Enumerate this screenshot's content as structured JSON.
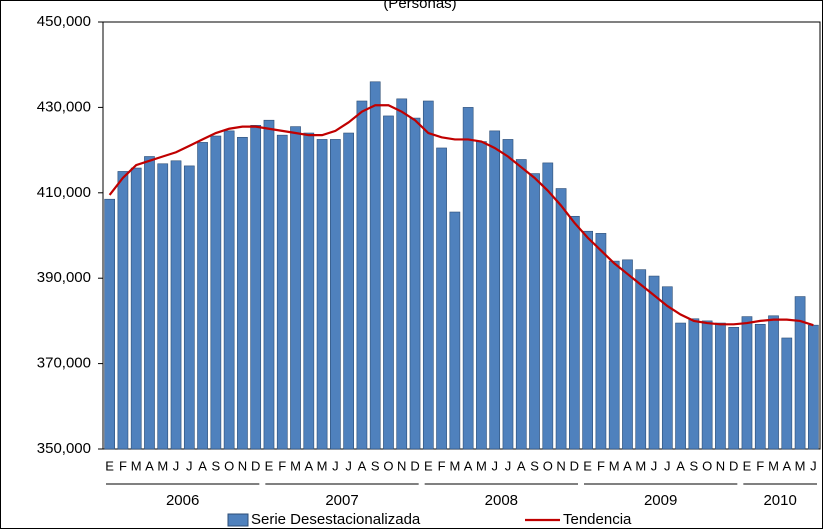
{
  "chart_data": {
    "type": "bar",
    "title": "(Personas)",
    "categories": [
      "E",
      "F",
      "M",
      "A",
      "M",
      "J",
      "J",
      "A",
      "S",
      "O",
      "N",
      "D",
      "E",
      "F",
      "M",
      "A",
      "M",
      "J",
      "J",
      "A",
      "S",
      "O",
      "N",
      "D",
      "E",
      "F",
      "M",
      "A",
      "M",
      "J",
      "J",
      "A",
      "S",
      "O",
      "N",
      "D",
      "E",
      "F",
      "M",
      "A",
      "M",
      "J",
      "J",
      "A",
      "S",
      "O",
      "N",
      "D",
      "E",
      "F",
      "M",
      "A",
      "M",
      "J"
    ],
    "category_groups": [
      "2006",
      "2007",
      "2008",
      "2009",
      "2010"
    ],
    "series": [
      {
        "name": "Serie Desestacionalizada",
        "type": "bar",
        "color": "#4f81bd",
        "values": [
          408500,
          415000,
          415800,
          418500,
          416800,
          417500,
          416300,
          421800,
          423300,
          424500,
          423000,
          425800,
          427000,
          423500,
          425500,
          424000,
          422500,
          422500,
          424000,
          431500,
          436000,
          428000,
          432000,
          427500,
          431500,
          420500,
          405500,
          430000,
          422000,
          424500,
          422500,
          417800,
          414500,
          417000,
          411000,
          404500,
          401000,
          400500,
          394000,
          394300,
          392000,
          390500,
          388000,
          379500,
          380500,
          380000,
          379500,
          378500,
          381000,
          379200,
          381200,
          376000,
          385700,
          379000
        ]
      },
      {
        "name": "Tendencia",
        "type": "line",
        "color": "#c00000",
        "values": [
          409500,
          413500,
          416500,
          417500,
          418500,
          419500,
          421000,
          422500,
          424000,
          425000,
          425500,
          425500,
          425000,
          424500,
          424000,
          423500,
          423500,
          424500,
          426500,
          429000,
          430500,
          430500,
          429000,
          427000,
          424000,
          423000,
          422500,
          422500,
          422000,
          420500,
          418500,
          416000,
          413500,
          410500,
          407000,
          403000,
          399500,
          396500,
          393500,
          391000,
          388500,
          386000,
          383500,
          381500,
          380000,
          379500,
          379200,
          379200,
          379500,
          380000,
          380300,
          380300,
          380000,
          379000
        ]
      }
    ],
    "ylim": [
      350000,
      450000
    ],
    "yticks": [
      {
        "value": 350000,
        "label": "350,000"
      },
      {
        "value": 370000,
        "label": "370,000"
      },
      {
        "value": 390000,
        "label": "390,000"
      },
      {
        "value": 410000,
        "label": "410,000"
      },
      {
        "value": 430000,
        "label": "430,000"
      },
      {
        "value": 450000,
        "label": "450,000"
      }
    ],
    "grid": false,
    "legend": "bottom"
  }
}
